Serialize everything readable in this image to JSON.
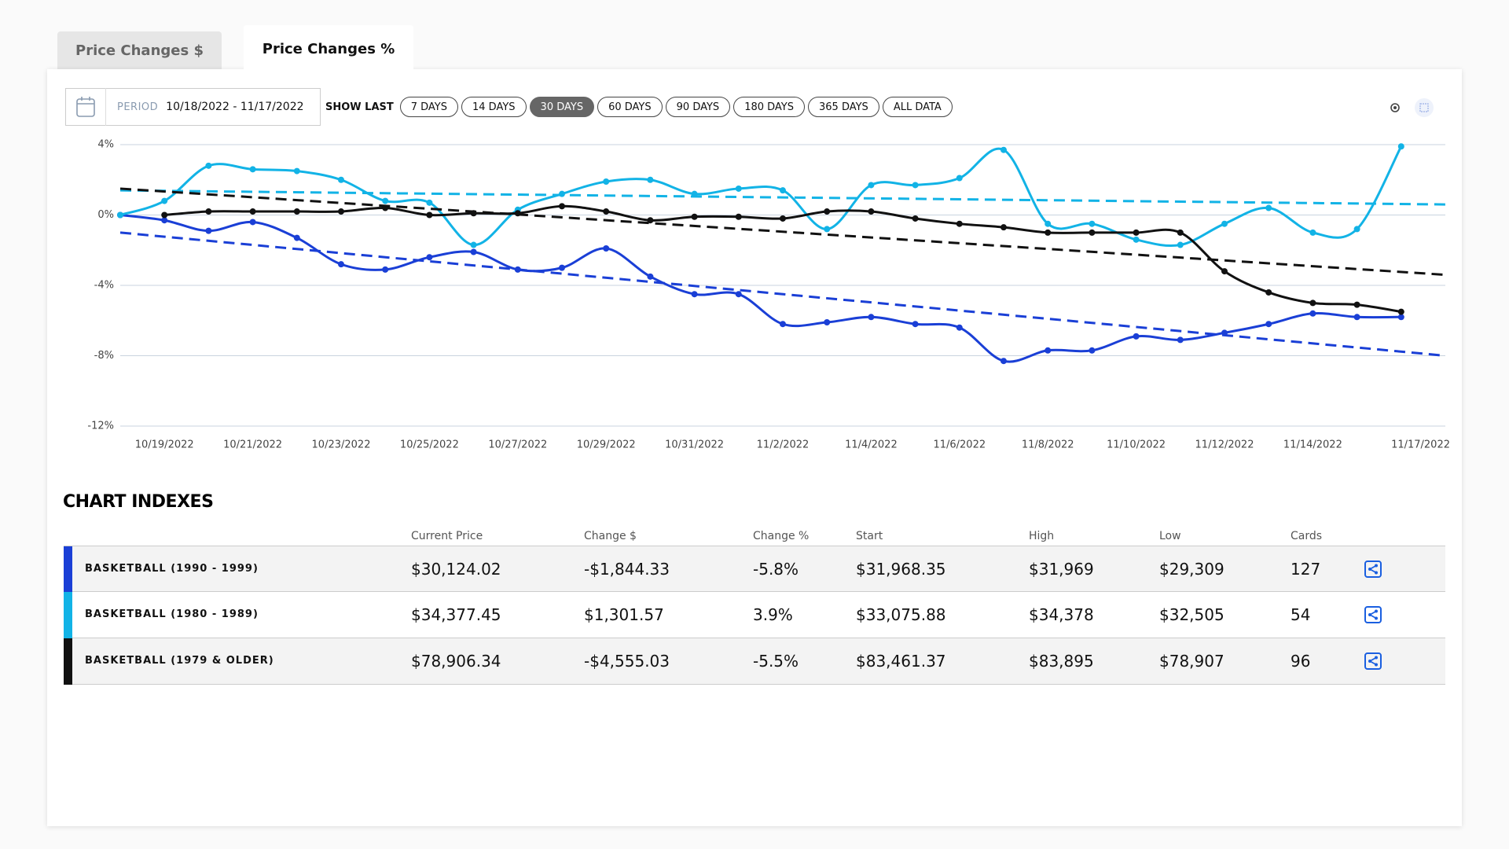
{
  "tabs": [
    "Price Changes $",
    "Price Changes %"
  ],
  "active_tab": 1,
  "toolbar": {
    "period_label": "PERIOD",
    "period": "10/18/2022 - 11/17/2022",
    "show_last_label": "SHOW LAST",
    "ranges": [
      "7 DAYS",
      "14 DAYS",
      "30 DAYS",
      "60 DAYS",
      "90 DAYS",
      "180 DAYS",
      "365 DAYS",
      "ALL DATA"
    ],
    "active_range": 2
  },
  "chart_data": {
    "type": "line",
    "smooth": true,
    "grid": true,
    "categories": [
      null,
      "10/19/2022",
      null,
      "10/21/2022",
      null,
      "10/23/2022",
      null,
      "10/25/2022",
      null,
      "10/27/2022",
      null,
      "10/29/2022",
      null,
      "10/31/2022",
      null,
      "11/2/2022",
      null,
      "11/4/2022",
      null,
      "11/6/2022",
      null,
      "11/8/2022",
      null,
      "11/10/2022",
      null,
      "11/12/2022",
      null,
      "11/14/2022",
      null,
      null,
      "11/17/2022"
    ],
    "ylim": [
      -12,
      4
    ],
    "yticks": [
      {
        "value": -12,
        "label": "-12%"
      },
      {
        "value": -8,
        "label": "-8%"
      },
      {
        "value": -4,
        "label": "-4%"
      },
      {
        "value": 0,
        "label": "0%"
      },
      {
        "value": 4,
        "label": "4%"
      }
    ],
    "series": [
      {
        "color": "#1a3fd6",
        "trend": [
          -1.0,
          -8.0
        ],
        "values": [
          0,
          -0.3,
          -0.9,
          -0.4,
          -1.3,
          -2.8,
          -3.1,
          -2.4,
          -2.1,
          -3.1,
          -3.0,
          -1.9,
          -3.5,
          -4.5,
          -4.5,
          -6.2,
          -6.1,
          -5.8,
          -6.2,
          -6.4,
          -8.3,
          -7.7,
          -7.7,
          -6.9,
          -7.1,
          -6.7,
          -6.2,
          -5.6,
          -5.8,
          -5.8,
          null
        ]
      },
      {
        "color": "#12b3e6",
        "trend": [
          1.4,
          0.6
        ],
        "values": [
          0,
          0.8,
          2.8,
          2.6,
          2.5,
          2.0,
          0.8,
          0.7,
          -1.7,
          0.3,
          1.2,
          1.9,
          2.0,
          1.2,
          1.5,
          1.4,
          -0.8,
          1.7,
          1.7,
          2.1,
          3.7,
          -0.5,
          -0.5,
          -1.4,
          -1.7,
          -0.5,
          0.4,
          -1.0,
          -0.8,
          3.9,
          null
        ]
      },
      {
        "color": "#111111",
        "trend": [
          1.5,
          -3.4
        ],
        "values": [
          null,
          0.0,
          0.2,
          0.2,
          0.2,
          0.2,
          0.4,
          0.0,
          0.1,
          0.1,
          0.5,
          0.2,
          -0.3,
          -0.1,
          -0.1,
          -0.2,
          0.2,
          0.2,
          -0.2,
          -0.5,
          -0.7,
          -1.0,
          -1.0,
          -1.0,
          -1.0,
          -3.2,
          -4.4,
          -5.0,
          -5.1,
          -5.5,
          null
        ]
      }
    ]
  },
  "indexes": {
    "title": "CHART INDEXES",
    "columns": [
      "Current Price",
      "Change $",
      "Change %",
      "Start",
      "High",
      "Low",
      "Cards"
    ],
    "rows": [
      {
        "name": "BASKETBALL (1990 - 1999)",
        "cells": [
          "$30,124.02",
          "-$1,844.33",
          "-5.8%",
          "$31,968.35",
          "$31,969",
          "$29,309",
          "127"
        ]
      },
      {
        "name": "BASKETBALL (1980 - 1989)",
        "cells": [
          "$34,377.45",
          "$1,301.57",
          "3.9%",
          "$33,075.88",
          "$34,378",
          "$32,505",
          "54"
        ]
      },
      {
        "name": "BASKETBALL (1979 & OLDER)",
        "cells": [
          "$78,906.34",
          "-$4,555.03",
          "-5.5%",
          "$83,461.37",
          "$83,895",
          "$78,907",
          "96"
        ]
      }
    ]
  }
}
